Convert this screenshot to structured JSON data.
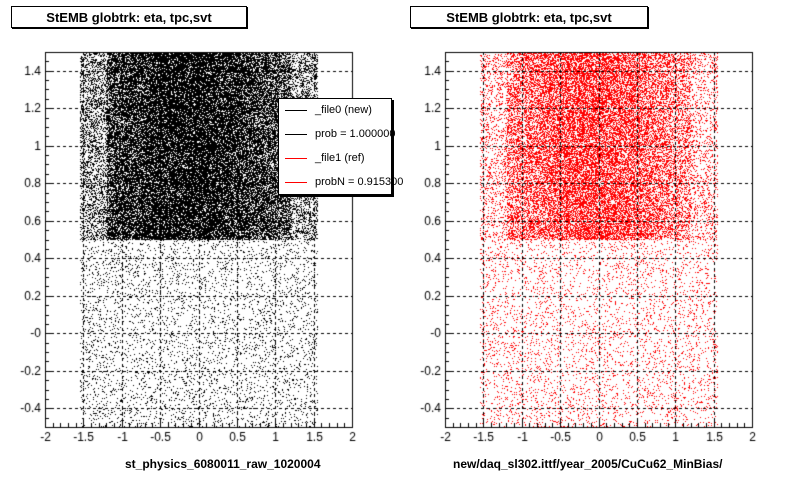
{
  "chart_data": [
    {
      "type": "scatter",
      "title": "StEMB globtrk: eta, tpc,svt",
      "xlabel": "st_physics_6080011_raw_1020004",
      "ylabel": "",
      "xlim": [
        -2,
        2
      ],
      "ylim": [
        -0.5,
        1.5
      ],
      "xticks": [
        "-2",
        "-1.5",
        "-1",
        "-0.5",
        "0",
        "0.5",
        "1",
        "1.5",
        "2"
      ],
      "yticks": [
        "-0.4",
        "-0.2",
        "-0",
        "0.2",
        "0.4",
        "0.6",
        "0.8",
        "1",
        "1.2",
        "1.4"
      ],
      "grid": true,
      "marker_color": "#000000",
      "density_regions": [
        {
          "x_range": [
            -1.2,
            1.2
          ],
          "y_range": [
            0.5,
            1.5
          ],
          "density": "very high",
          "core_x_range": [
            -0.6,
            0.3
          ]
        },
        {
          "x_range": [
            -1.55,
            1.55
          ],
          "y_range": [
            0.5,
            1.5
          ],
          "density": "high"
        },
        {
          "x_range": [
            -1.55,
            1.55
          ],
          "y_range": [
            -0.5,
            0.5
          ],
          "density": "low"
        }
      ],
      "legend": {
        "placement": "top-right",
        "entries": [
          {
            "label": "_file0 (new)",
            "color": "#000000"
          },
          {
            "label": "prob = 1.000000",
            "color": "#000000"
          },
          {
            "label": "_file1 (ref)",
            "color": "#ff0000"
          },
          {
            "label": "probN = 0.915300",
            "color": "#ff0000"
          }
        ]
      }
    },
    {
      "type": "scatter",
      "title": "StEMB globtrk: eta, tpc,svt",
      "xlabel": "new/daq_sl302.ittf/year_2005/CuCu62_MinBias/",
      "ylabel": "",
      "xlim": [
        -2,
        2
      ],
      "ylim": [
        -0.5,
        1.5
      ],
      "xticks": [
        "-2",
        "-1.5",
        "-1",
        "-0.5",
        "0",
        "0.5",
        "1",
        "1.5",
        "2"
      ],
      "yticks": [
        "-0.4",
        "-0.2",
        "-0",
        "0.2",
        "0.4",
        "0.6",
        "0.8",
        "1",
        "1.2",
        "1.4"
      ],
      "grid": true,
      "marker_color": "#ff0000",
      "density_regions": [
        {
          "x_range": [
            -1.2,
            1.2
          ],
          "y_range": [
            0.5,
            1.5
          ],
          "density": "high",
          "core_x_range": [
            -0.5,
            0.3
          ]
        },
        {
          "x_range": [
            -1.55,
            1.55
          ],
          "y_range": [
            0.5,
            1.5
          ],
          "density": "medium"
        },
        {
          "x_range": [
            -1.55,
            1.55
          ],
          "y_range": [
            -0.5,
            0.5
          ],
          "density": "low"
        }
      ]
    }
  ]
}
